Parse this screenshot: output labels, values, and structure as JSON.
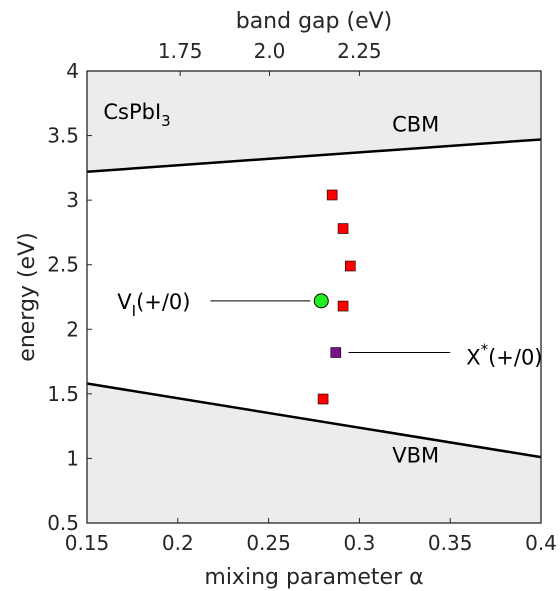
{
  "chart_data": {
    "type": "scatter",
    "title": "",
    "xlabel": "mixing parameter α",
    "ylabel": "energy (eV)",
    "x2label": "band gap (eV)",
    "xlim": [
      0.15,
      0.4
    ],
    "ylim": [
      0.5,
      4
    ],
    "x_ticks": [
      0.15,
      0.2,
      0.25,
      0.3,
      0.35,
      0.4
    ],
    "x_tick_labels": [
      "0.15",
      "0.2",
      "0.25",
      "0.3",
      "0.35",
      "0.4"
    ],
    "y_ticks": [
      0.5,
      1,
      1.5,
      2,
      2.5,
      3,
      3.5,
      4
    ],
    "y_tick_labels": [
      "0.5",
      "1",
      "1.5",
      "2",
      "2.5",
      "3",
      "3.5",
      "4"
    ],
    "x2_ticks": [
      {
        "label": "1.75",
        "alpha": 0.2013
      },
      {
        "label": "2.0",
        "alpha": 0.2505
      },
      {
        "label": "2.25",
        "alpha": 0.3
      }
    ],
    "grid": false,
    "colors": {
      "band_fill": "#ececec",
      "band_edge": "#000000",
      "defect_red": "#ff0000",
      "vacancy_green": "#22ee22",
      "interstitial_purple": "#7a0f8c"
    },
    "lines": [
      {
        "name": "CBM",
        "x": [
          0.15,
          0.4
        ],
        "y": [
          3.22,
          3.47
        ]
      },
      {
        "name": "VBM",
        "x": [
          0.15,
          0.4
        ],
        "y": [
          1.58,
          1.01
        ]
      }
    ],
    "shaded_regions": [
      {
        "name": "conduction band",
        "above": "CBM",
        "to": 4
      },
      {
        "name": "valence band",
        "below": "VBM",
        "to": 0.5
      }
    ],
    "series": [
      {
        "marker": "square",
        "color": "#ff0000",
        "points": [
          {
            "x": 0.285,
            "y": 3.04
          },
          {
            "x": 0.291,
            "y": 2.78
          },
          {
            "x": 0.295,
            "y": 2.49
          },
          {
            "x": 0.291,
            "y": 2.18
          },
          {
            "x": 0.28,
            "y": 1.46
          }
        ]
      },
      {
        "marker": "circle",
        "color": "#22ee22",
        "points": [
          {
            "x": 0.279,
            "y": 2.22
          }
        ]
      },
      {
        "marker": "square",
        "color": "#7a0f8c",
        "points": [
          {
            "x": 0.287,
            "y": 1.82
          }
        ]
      }
    ],
    "annotations": [
      {
        "id": "material",
        "main": "CsPbI",
        "sub": "3"
      },
      {
        "id": "cbm",
        "text": "CBM"
      },
      {
        "id": "vbm",
        "text": "VBM"
      },
      {
        "id": "vacancy",
        "main": "V",
        "sub": "I",
        "rest": "(+/0)",
        "leader_x": [
          0.218,
          0.273
        ],
        "leader_y": 2.22
      },
      {
        "id": "interstitial",
        "main": "X",
        "sup": "*",
        "rest": "(+/0)",
        "leader_x": [
          0.294,
          0.35
        ],
        "leader_y": 1.82
      }
    ]
  }
}
